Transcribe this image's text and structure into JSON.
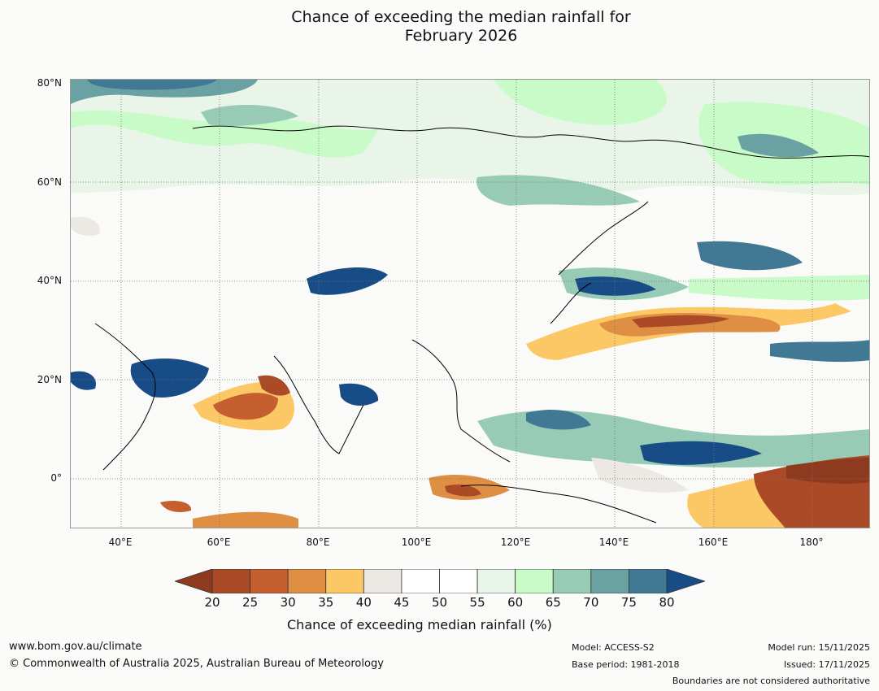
{
  "title_line1": "Chance of exceeding the median rainfall for",
  "title_line2": "February 2026",
  "lat_labels": [
    "80°N",
    "60°N",
    "40°N",
    "20°N",
    "0°"
  ],
  "lon_labels": [
    "40°E",
    "60°E",
    "80°E",
    "100°E",
    "120°E",
    "140°E",
    "160°E",
    "180°"
  ],
  "colorbar": {
    "ticks": [
      "20",
      "25",
      "30",
      "35",
      "40",
      "45",
      "50",
      "55",
      "60",
      "65",
      "70",
      "75",
      "80"
    ],
    "colors": [
      "#8e3a1f",
      "#ab4a26",
      "#c65f30",
      "#df8f44",
      "#fcc866",
      "#ece8e4",
      "#ffffff",
      "#ffffff",
      "#eaf5e9",
      "#c9fbc8",
      "#98cbb5",
      "#6aa1a3",
      "#417995",
      "#184c86"
    ],
    "title": "Chance of exceeding median rainfall (%)"
  },
  "footer": {
    "url": "www.bom.gov.au/climate",
    "copyright": "© Commonwealth of Australia 2025, Australian Bureau of Meteorology",
    "model": "Model: ACCESS-S2",
    "base_period": "Base period: 1981-2018",
    "model_run": "Model run: 15/11/2025",
    "issued": "Issued: 17/11/2025",
    "boundaries": "Boundaries are not considered authoritative"
  }
}
